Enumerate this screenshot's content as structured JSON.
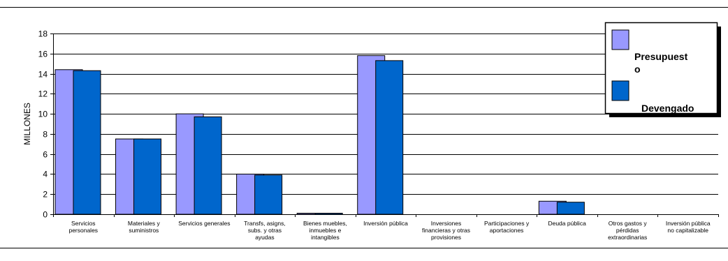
{
  "chart_data": {
    "type": "bar",
    "title": "",
    "xlabel": "",
    "ylabel": "MILLONES",
    "ylim": [
      0,
      18
    ],
    "yticks": [
      0,
      2,
      4,
      6,
      8,
      10,
      12,
      14,
      16,
      18
    ],
    "grid": true,
    "legend_position": "top-right",
    "categories": [
      [
        "Servicios",
        "personales"
      ],
      [
        "Materiales y",
        "suministros"
      ],
      [
        "Servicios generales"
      ],
      [
        "Transfs, asigns,",
        "subs. y otras",
        "ayudas"
      ],
      [
        "Bienes muebles,",
        "inmuebles e",
        "intangibles"
      ],
      [
        "Inversión pública"
      ],
      [
        "Inversiones",
        "financieras y otras",
        "provisiones"
      ],
      [
        "Participaciones y",
        "aportaciones"
      ],
      [
        "Deuda pública"
      ],
      [
        "Otros gastos y",
        "pérdidas",
        "extraordinarias"
      ],
      [
        "Inversión pública",
        "no capitalizable"
      ]
    ],
    "series": [
      {
        "name": "Presupuesto",
        "legend_lines": [
          "Presupuest",
          "o"
        ],
        "color": "#9999FF",
        "values": [
          14.4,
          7.5,
          10.0,
          4.0,
          0.1,
          15.8,
          0,
          0,
          1.3,
          0,
          0
        ]
      },
      {
        "name": "Devengado",
        "legend_lines": [
          "",
          "Devengado"
        ],
        "color": "#0066CC",
        "values": [
          14.3,
          7.5,
          9.7,
          3.9,
          0.1,
          15.3,
          0,
          0,
          1.2,
          0,
          0
        ]
      }
    ]
  }
}
